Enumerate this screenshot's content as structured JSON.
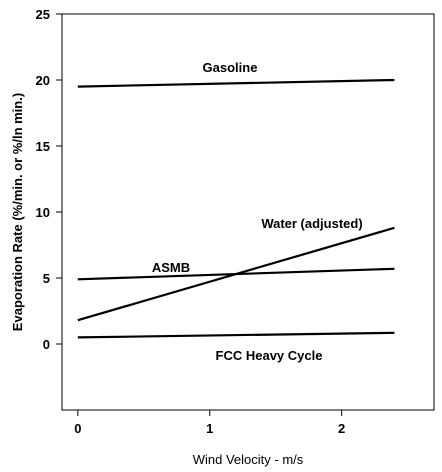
{
  "chart_data": {
    "type": "line",
    "xlabel": "Wind Velocity - m/s",
    "ylabel": "Evaporation Rate (%/min. or %/ln min.)",
    "xlim": [
      -0.12,
      2.7
    ],
    "ylim": [
      -5,
      25
    ],
    "xticks": [
      "0",
      "1",
      "2"
    ],
    "xtick_values": [
      0,
      1,
      2
    ],
    "yticks": [
      "0",
      "5",
      "10",
      "15",
      "20",
      "25"
    ],
    "ytick_values": [
      0,
      5,
      10,
      15,
      20,
      25
    ],
    "grid": false,
    "legend": "none",
    "series": [
      {
        "name": "Gasoline",
        "x": [
          0,
          2.4
        ],
        "y": [
          19.5,
          20.0
        ]
      },
      {
        "name": "Water (adjusted)",
        "x": [
          0,
          2.4
        ],
        "y": [
          1.8,
          8.8
        ]
      },
      {
        "name": "ASMB",
        "x": [
          0,
          2.4
        ],
        "y": [
          4.9,
          5.7
        ]
      },
      {
        "name": "FCC Heavy Cycle",
        "x": [
          0,
          2.4
        ],
        "y": [
          0.5,
          0.85
        ]
      }
    ]
  }
}
